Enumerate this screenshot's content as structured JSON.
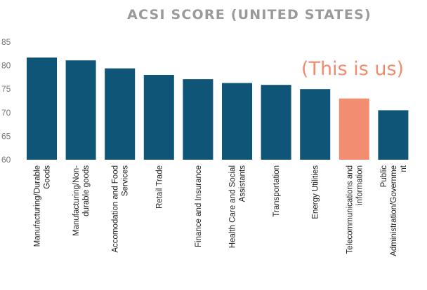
{
  "chart_data": {
    "type": "bar",
    "title": "ACSI SCORE (UNITED STATES)",
    "xlabel": "",
    "ylabel": "",
    "ylim": [
      60,
      85
    ],
    "yticks": [
      60,
      65,
      70,
      75,
      80,
      85
    ],
    "grid": false,
    "categories": [
      "Manufacturing/Durable Goods",
      "Manufacturing/Non-durable goods",
      "Accomodation and Food Services",
      "Retail Trade",
      "Finance and Insurance",
      "Health Care and Social Assistants",
      "Transportation",
      "Energy Utilities",
      "Telecommunications and information",
      "Public Administration/Government"
    ],
    "category_label_lines": [
      [
        "Manufacturing/Durable",
        "Goods"
      ],
      [
        "Manufacturing/Non-",
        "durable goods"
      ],
      [
        "Accomodation and Food",
        "Services"
      ],
      [
        "Retail Trade"
      ],
      [
        "Finance and Insurance"
      ],
      [
        "Health Care and Social",
        "Assistants"
      ],
      [
        "Transportation"
      ],
      [
        "Energy Utilities"
      ],
      [
        "Telecommunications and",
        "information"
      ],
      [
        "Public",
        "Administration/Governme",
        "nt"
      ]
    ],
    "values": [
      81.7,
      81.1,
      79.4,
      78.0,
      77.1,
      76.3,
      75.9,
      75.0,
      73.0,
      70.5
    ],
    "colors": {
      "default": "#0e5577",
      "highlight": "#f28d72"
    },
    "highlight_index": 8,
    "annotations": [
      {
        "text": "(This is us)",
        "target_index": 8
      }
    ]
  }
}
